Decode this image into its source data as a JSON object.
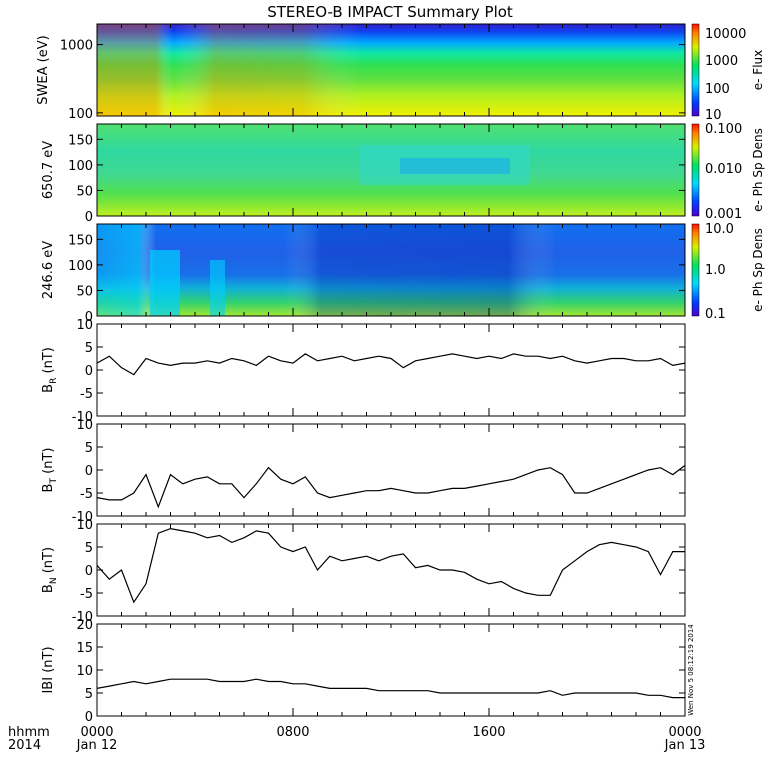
{
  "chart_data": [
    {
      "type": "heatmap",
      "panel": "swea",
      "title": "STEREO-B IMPACT Summary Plot",
      "ylabel": "SWEA (eV)",
      "yscale": "log",
      "ylim": [
        90,
        2000
      ],
      "yticks": [
        "1000",
        "100"
      ],
      "ytick_values": [
        1000,
        100
      ],
      "colorbar": {
        "label": "e- Flux",
        "scale": "log",
        "ticks": [
          "10000",
          "1000",
          "100",
          "10"
        ]
      }
    },
    {
      "type": "heatmap",
      "panel": "pad650",
      "ylabel": "650.7 eV",
      "ylim": [
        0,
        180
      ],
      "yticks": [
        "150",
        "100",
        "50",
        "0"
      ],
      "ytick_values": [
        150,
        100,
        50,
        0
      ],
      "colorbar": {
        "label": "e- Ph Sp Dens",
        "scale": "log",
        "ticks": [
          "0.100",
          "0.010",
          "0.001"
        ]
      }
    },
    {
      "type": "heatmap",
      "panel": "pad246",
      "ylabel": "246.6 eV",
      "ylim": [
        0,
        180
      ],
      "yticks": [
        "150",
        "100",
        "50",
        "0"
      ],
      "ytick_values": [
        150,
        100,
        50,
        0
      ],
      "colorbar": {
        "label": "e- Ph Sp Dens",
        "scale": "log",
        "ticks": [
          "10.0",
          "1.0",
          "0.1"
        ]
      }
    },
    {
      "type": "line",
      "panel": "br",
      "ylabel": {
        "base": "B",
        "sub": "R",
        "unit": " (nT)"
      },
      "ylim": [
        -10,
        10
      ],
      "yticks": [
        "10",
        "5",
        "0",
        "-5",
        "-10"
      ],
      "ytick_values": [
        10,
        5,
        0,
        -5,
        -10
      ],
      "x": [
        0,
        0.5,
        1,
        1.5,
        2,
        2.5,
        3,
        3.5,
        4,
        4.5,
        5,
        5.5,
        6,
        6.5,
        7,
        7.5,
        8,
        8.5,
        9,
        9.5,
        10,
        10.5,
        11,
        11.5,
        12,
        12.5,
        13,
        13.5,
        14,
        14.5,
        15,
        15.5,
        16,
        16.5,
        17,
        17.5,
        18,
        18.5,
        19,
        19.5,
        20,
        20.5,
        21,
        21.5,
        22,
        22.5,
        23,
        23.5,
        24
      ],
      "y": [
        1.5,
        3,
        0.5,
        -1,
        2.5,
        1.5,
        1,
        1.5,
        1.5,
        2,
        1.5,
        2.5,
        2,
        1,
        3,
        2,
        1.5,
        3.5,
        2,
        2.5,
        3,
        2,
        2.5,
        3,
        2.5,
        0.5,
        2,
        2.5,
        3,
        3.5,
        3,
        2.5,
        3,
        2.5,
        3.5,
        3,
        3,
        2.5,
        3,
        2,
        1.5,
        2,
        2.5,
        2.5,
        2,
        2,
        2.5,
        1,
        1.5
      ]
    },
    {
      "type": "line",
      "panel": "bt",
      "ylabel": {
        "base": "B",
        "sub": "T",
        "unit": " (nT)"
      },
      "ylim": [
        -10,
        10
      ],
      "yticks": [
        "10",
        "5",
        "0",
        "-5",
        "-10"
      ],
      "ytick_values": [
        10,
        5,
        0,
        -5,
        -10
      ],
      "x": [
        0,
        0.5,
        1,
        1.5,
        2,
        2.5,
        3,
        3.5,
        4,
        4.5,
        5,
        5.5,
        6,
        6.5,
        7,
        7.5,
        8,
        8.5,
        9,
        9.5,
        10,
        10.5,
        11,
        11.5,
        12,
        12.5,
        13,
        13.5,
        14,
        14.5,
        15,
        15.5,
        16,
        16.5,
        17,
        17.5,
        18,
        18.5,
        19,
        19.5,
        20,
        20.5,
        21,
        21.5,
        22,
        22.5,
        23,
        23.5,
        24
      ],
      "y": [
        -6,
        -6.5,
        -6.5,
        -5,
        -1,
        -8,
        -1,
        -3,
        -2,
        -1.5,
        -3,
        -3,
        -6,
        -3,
        0.5,
        -2,
        -3,
        -1.5,
        -5,
        -6,
        -5.5,
        -5,
        -4.5,
        -4.5,
        -4,
        -4.5,
        -5,
        -5,
        -4.5,
        -4,
        -4,
        -3.5,
        -3,
        -2.5,
        -2,
        -1,
        0,
        0.5,
        -1,
        -5,
        -5,
        -4,
        -3,
        -2,
        -1,
        0,
        0.5,
        -1,
        1
      ]
    },
    {
      "type": "line",
      "panel": "bn",
      "ylabel": {
        "base": "B",
        "sub": "N",
        "unit": " (nT)"
      },
      "ylim": [
        -10,
        10
      ],
      "yticks": [
        "10",
        "5",
        "0",
        "-5",
        "-10"
      ],
      "ytick_values": [
        10,
        5,
        0,
        -5,
        -10
      ],
      "x": [
        0,
        0.5,
        1,
        1.5,
        2,
        2.5,
        3,
        3.5,
        4,
        4.5,
        5,
        5.5,
        6,
        6.5,
        7,
        7.5,
        8,
        8.5,
        9,
        9.5,
        10,
        10.5,
        11,
        11.5,
        12,
        12.5,
        13,
        13.5,
        14,
        14.5,
        15,
        15.5,
        16,
        16.5,
        17,
        17.5,
        18,
        18.5,
        19,
        19.5,
        20,
        20.5,
        21,
        21.5,
        22,
        22.5,
        23,
        23.5,
        24
      ],
      "y": [
        1,
        -2,
        0,
        -7,
        -3,
        8,
        9,
        8.5,
        8,
        7,
        7.5,
        6,
        7,
        8.5,
        8,
        5,
        4,
        5,
        0,
        3,
        2,
        2.5,
        3,
        2,
        3,
        3.5,
        0.5,
        1,
        0,
        0,
        -0.5,
        -2,
        -3,
        -2.5,
        -4,
        -5,
        -5.5,
        -5.5,
        0,
        2,
        4,
        5.5,
        6,
        5.5,
        5,
        4,
        -1,
        4,
        4
      ]
    },
    {
      "type": "line",
      "panel": "bmag",
      "ylabel": {
        "base": "IBI",
        "sub": "",
        "unit": " (nT)"
      },
      "ylim": [
        0,
        20
      ],
      "yticks": [
        "20",
        "15",
        "10",
        "5",
        "0"
      ],
      "ytick_values": [
        20,
        15,
        10,
        5,
        0
      ],
      "side_label": "Wen Nov 5 08:12:19 2014",
      "x": [
        0,
        0.5,
        1,
        1.5,
        2,
        2.5,
        3,
        3.5,
        4,
        4.5,
        5,
        5.5,
        6,
        6.5,
        7,
        7.5,
        8,
        8.5,
        9,
        9.5,
        10,
        10.5,
        11,
        11.5,
        12,
        12.5,
        13,
        13.5,
        14,
        14.5,
        15,
        15.5,
        16,
        16.5,
        17,
        17.5,
        18,
        18.5,
        19,
        19.5,
        20,
        20.5,
        21,
        21.5,
        22,
        22.5,
        23,
        23.5,
        24
      ],
      "y": [
        6,
        6.5,
        7,
        7.5,
        7,
        7.5,
        8,
        8,
        8,
        8,
        7.5,
        7.5,
        7.5,
        8,
        7.5,
        7.5,
        7,
        7,
        6.5,
        6,
        6,
        6,
        6,
        5.5,
        5.5,
        5.5,
        5.5,
        5.5,
        5,
        5,
        5,
        5,
        5,
        5,
        5,
        5,
        5,
        5.5,
        4.5,
        5,
        5,
        5,
        5,
        5,
        5,
        4.5,
        4.5,
        4,
        4
      ]
    }
  ],
  "xaxis": {
    "row1_label": "hhmm",
    "row2_label": "2014",
    "ticks_top": [
      "0000",
      "0800",
      "1600",
      "0000"
    ],
    "ticks_bottom": [
      "Jan 12",
      "",
      "",
      "Jan 13"
    ],
    "tick_hours": [
      0,
      8,
      16,
      24
    ],
    "xlim_hours": [
      0,
      24
    ]
  },
  "colors": {
    "line": "#000000",
    "frame": "#000000",
    "background": "#ffffff"
  }
}
